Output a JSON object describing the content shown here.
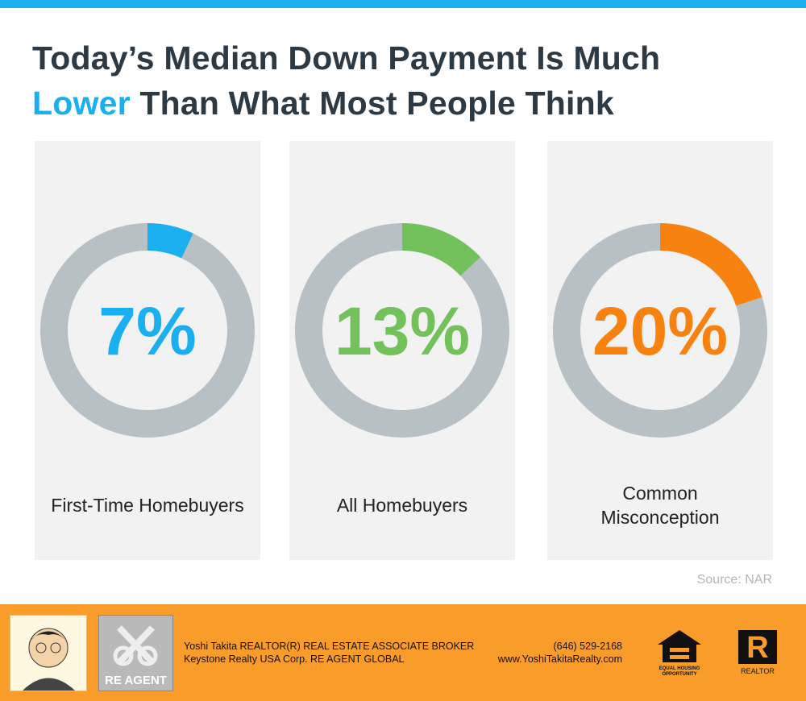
{
  "title": {
    "line1": "Today’s Median Down Payment Is Much",
    "highlight": "Lower",
    "rest": "Than What Most People Think"
  },
  "chart_data": [
    {
      "type": "donut",
      "categories": [
        "First-Time Homebuyers"
      ],
      "values": [
        7
      ],
      "value_labels": [
        "7%"
      ],
      "color": "#1ab0ef",
      "ylim": [
        0,
        100
      ]
    },
    {
      "type": "donut",
      "categories": [
        "All Homebuyers"
      ],
      "values": [
        13
      ],
      "value_labels": [
        "13%"
      ],
      "color": "#72c15b",
      "ylim": [
        0,
        100
      ]
    },
    {
      "type": "donut",
      "categories": [
        "Common Misconception"
      ],
      "values": [
        20
      ],
      "value_labels": [
        "20%"
      ],
      "color": "#f7820f",
      "ylim": [
        0,
        100
      ]
    }
  ],
  "source": "Source: NAR",
  "footer": {
    "agent_line1": "Yoshi Takita REALTOR(R) REAL ESTATE ASSOCIATE BROKER",
    "agent_line2": "Keystone Realty USA Corp.  RE AGENT GLOBAL",
    "phone": "(646) 529-2168",
    "website": "www.YoshiTakitaRealty.com",
    "logo_text": "RE AGENT",
    "equal_housing": "EQUAL HOUSING OPPORTUNITY",
    "realtor": "REALTOR"
  }
}
